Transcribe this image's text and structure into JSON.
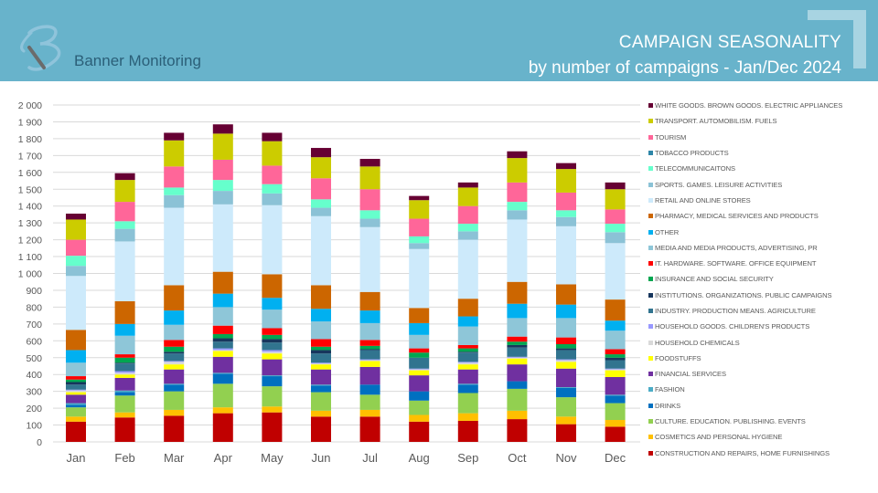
{
  "header": {
    "brand": "Banner Monitoring",
    "title": "CAMPAIGN SEASONALITY",
    "subtitle": "by number of campaigns - Jan/Dec 2024",
    "logo_icon": "b-letter-logo-icon",
    "colors": {
      "background": "#68b3cb",
      "accent": "#a8d4e2",
      "text": "#ffffff"
    }
  },
  "chart_data": {
    "type": "bar",
    "stacked": true,
    "title": "CAMPAIGN SEASONALITY",
    "subtitle": "by number of campaigns - Jan/Dec 2024",
    "xlabel": "",
    "ylabel": "",
    "ylim": [
      0,
      2000
    ],
    "yticks": [
      0,
      100,
      200,
      300,
      400,
      500,
      600,
      700,
      800,
      900,
      1000,
      1100,
      1200,
      1300,
      1400,
      1500,
      1600,
      1700,
      1800,
      1900,
      2000
    ],
    "ytick_labels": [
      "0",
      "100",
      "200",
      "300",
      "400",
      "500",
      "600",
      "700",
      "800",
      "900",
      "1 000",
      "1 100",
      "1 200",
      "1 300",
      "1 400",
      "1 500",
      "1 600",
      "1 700",
      "1 800",
      "1 900",
      "2 000"
    ],
    "grid": true,
    "legend_position": "right",
    "categories": [
      "Jan",
      "Feb",
      "Mar",
      "Apr",
      "May",
      "Jun",
      "Jul",
      "Aug",
      "Sep",
      "Oct",
      "Nov",
      "Dec"
    ],
    "series": [
      {
        "name": "CONSTRUCTION AND REPAIRS, HOME FURNISHINGS",
        "color": "#c00000",
        "values": [
          120,
          145,
          155,
          170,
          175,
          150,
          150,
          120,
          125,
          135,
          105,
          90
        ]
      },
      {
        "name": "COSMETICS AND PERSONAL HYGIENE",
        "color": "#ffc000",
        "values": [
          30,
          30,
          35,
          35,
          35,
          35,
          40,
          40,
          45,
          50,
          45,
          40
        ]
      },
      {
        "name": "CULTURE. EDUCATION. PUBLISHING. EVENTS",
        "color": "#92d050",
        "values": [
          55,
          100,
          110,
          140,
          120,
          110,
          90,
          85,
          120,
          130,
          115,
          100
        ]
      },
      {
        "name": "DRINKS",
        "color": "#0070c0",
        "values": [
          15,
          20,
          40,
          60,
          60,
          40,
          60,
          55,
          50,
          45,
          55,
          45
        ]
      },
      {
        "name": "FASHION",
        "color": "#4bacc6",
        "values": [
          10,
          10,
          5,
          5,
          5,
          5,
          0,
          0,
          5,
          0,
          5,
          5
        ]
      },
      {
        "name": "FINANCIAL SERVICES",
        "color": "#7030a0",
        "values": [
          50,
          75,
          85,
          95,
          95,
          90,
          105,
          95,
          85,
          100,
          110,
          105
        ]
      },
      {
        "name": "FOODSTUFFS",
        "color": "#ffff00",
        "values": [
          15,
          20,
          30,
          35,
          35,
          30,
          35,
          30,
          30,
          35,
          40,
          40
        ]
      },
      {
        "name": "HOUSEHOLD CHEMICALS",
        "color": "#d9d9d9",
        "values": [
          10,
          10,
          15,
          5,
          10,
          5,
          5,
          5,
          10,
          5,
          10,
          5
        ]
      },
      {
        "name": "HOUSEHOLD GOODS. CHILDREN'S PRODUCTS",
        "color": "#9999ff",
        "values": [
          5,
          10,
          5,
          10,
          10,
          5,
          5,
          5,
          5,
          5,
          5,
          5
        ]
      },
      {
        "name": "INDUSTRY. PRODUCTION MEANS. AGRICULTURE",
        "color": "#31748f",
        "values": [
          30,
          45,
          45,
          40,
          45,
          55,
          55,
          65,
          55,
          55,
          55,
          50
        ]
      },
      {
        "name": "INSTITUTIONS. ORGANIZATIONS. PUBLIC CAMPAIGNS",
        "color": "#17365d",
        "values": [
          15,
          5,
          10,
          20,
          20,
          20,
          5,
          0,
          5,
          15,
          10,
          15
        ]
      },
      {
        "name": "INSURANCE AND SOCIAL SECURITY",
        "color": "#00a650",
        "values": [
          15,
          30,
          30,
          25,
          25,
          20,
          20,
          30,
          20,
          20,
          25,
          20
        ]
      },
      {
        "name": "IT. HARDWARE. SOFTWARE. OFFICE EQUIPMENT",
        "color": "#ff0000",
        "values": [
          20,
          20,
          40,
          50,
          40,
          45,
          35,
          25,
          20,
          30,
          40,
          30
        ]
      },
      {
        "name": "MEDIA AND MEDIA PRODUCTS, ADVERTISING, PR",
        "color": "#8ec6d8",
        "values": [
          80,
          110,
          90,
          110,
          110,
          105,
          100,
          80,
          110,
          110,
          115,
          110
        ]
      },
      {
        "name": "OTHER",
        "color": "#00b0f0",
        "values": [
          75,
          70,
          85,
          80,
          70,
          75,
          75,
          70,
          60,
          85,
          80,
          60
        ]
      },
      {
        "name": "PHARMACY, MEDICAL SERVICES AND PRODUCTS",
        "color": "#cc6600",
        "values": [
          120,
          135,
          150,
          130,
          140,
          140,
          110,
          90,
          105,
          130,
          120,
          125
        ]
      },
      {
        "name": "RETAIL AND ONLINE STORES",
        "color": "#cdeafb",
        "values": [
          320,
          355,
          460,
          400,
          410,
          410,
          385,
          350,
          350,
          370,
          345,
          335
        ]
      },
      {
        "name": "SPORTS. GAMES. LEISURE ACTIVITIES",
        "color": "#8bc2d6",
        "values": [
          60,
          75,
          75,
          80,
          70,
          50,
          50,
          35,
          50,
          55,
          55,
          65
        ]
      },
      {
        "name": "TELECOMMUNICAITONS",
        "color": "#66ffcc",
        "values": [
          60,
          45,
          45,
          65,
          55,
          50,
          50,
          40,
          45,
          50,
          40,
          50
        ]
      },
      {
        "name": "TOBACCO PRODUCTS",
        "color": "#2e86a8",
        "values": [
          0,
          0,
          0,
          0,
          0,
          0,
          0,
          0,
          0,
          0,
          0,
          0
        ]
      },
      {
        "name": "TOURISM",
        "color": "#ff6699",
        "values": [
          95,
          115,
          125,
          120,
          110,
          125,
          125,
          105,
          105,
          115,
          105,
          85
        ]
      },
      {
        "name": "TRANSPORT. AUTOMOBILISM. FUELS",
        "color": "#cccc00",
        "values": [
          120,
          130,
          155,
          155,
          145,
          125,
          135,
          110,
          110,
          145,
          140,
          120
        ]
      },
      {
        "name": "WHITE GOODS. BROWN GOODS. ELECTRIC APPLIANCES",
        "color": "#660033",
        "values": [
          35,
          40,
          45,
          55,
          50,
          55,
          45,
          25,
          30,
          40,
          35,
          40
        ]
      }
    ]
  }
}
